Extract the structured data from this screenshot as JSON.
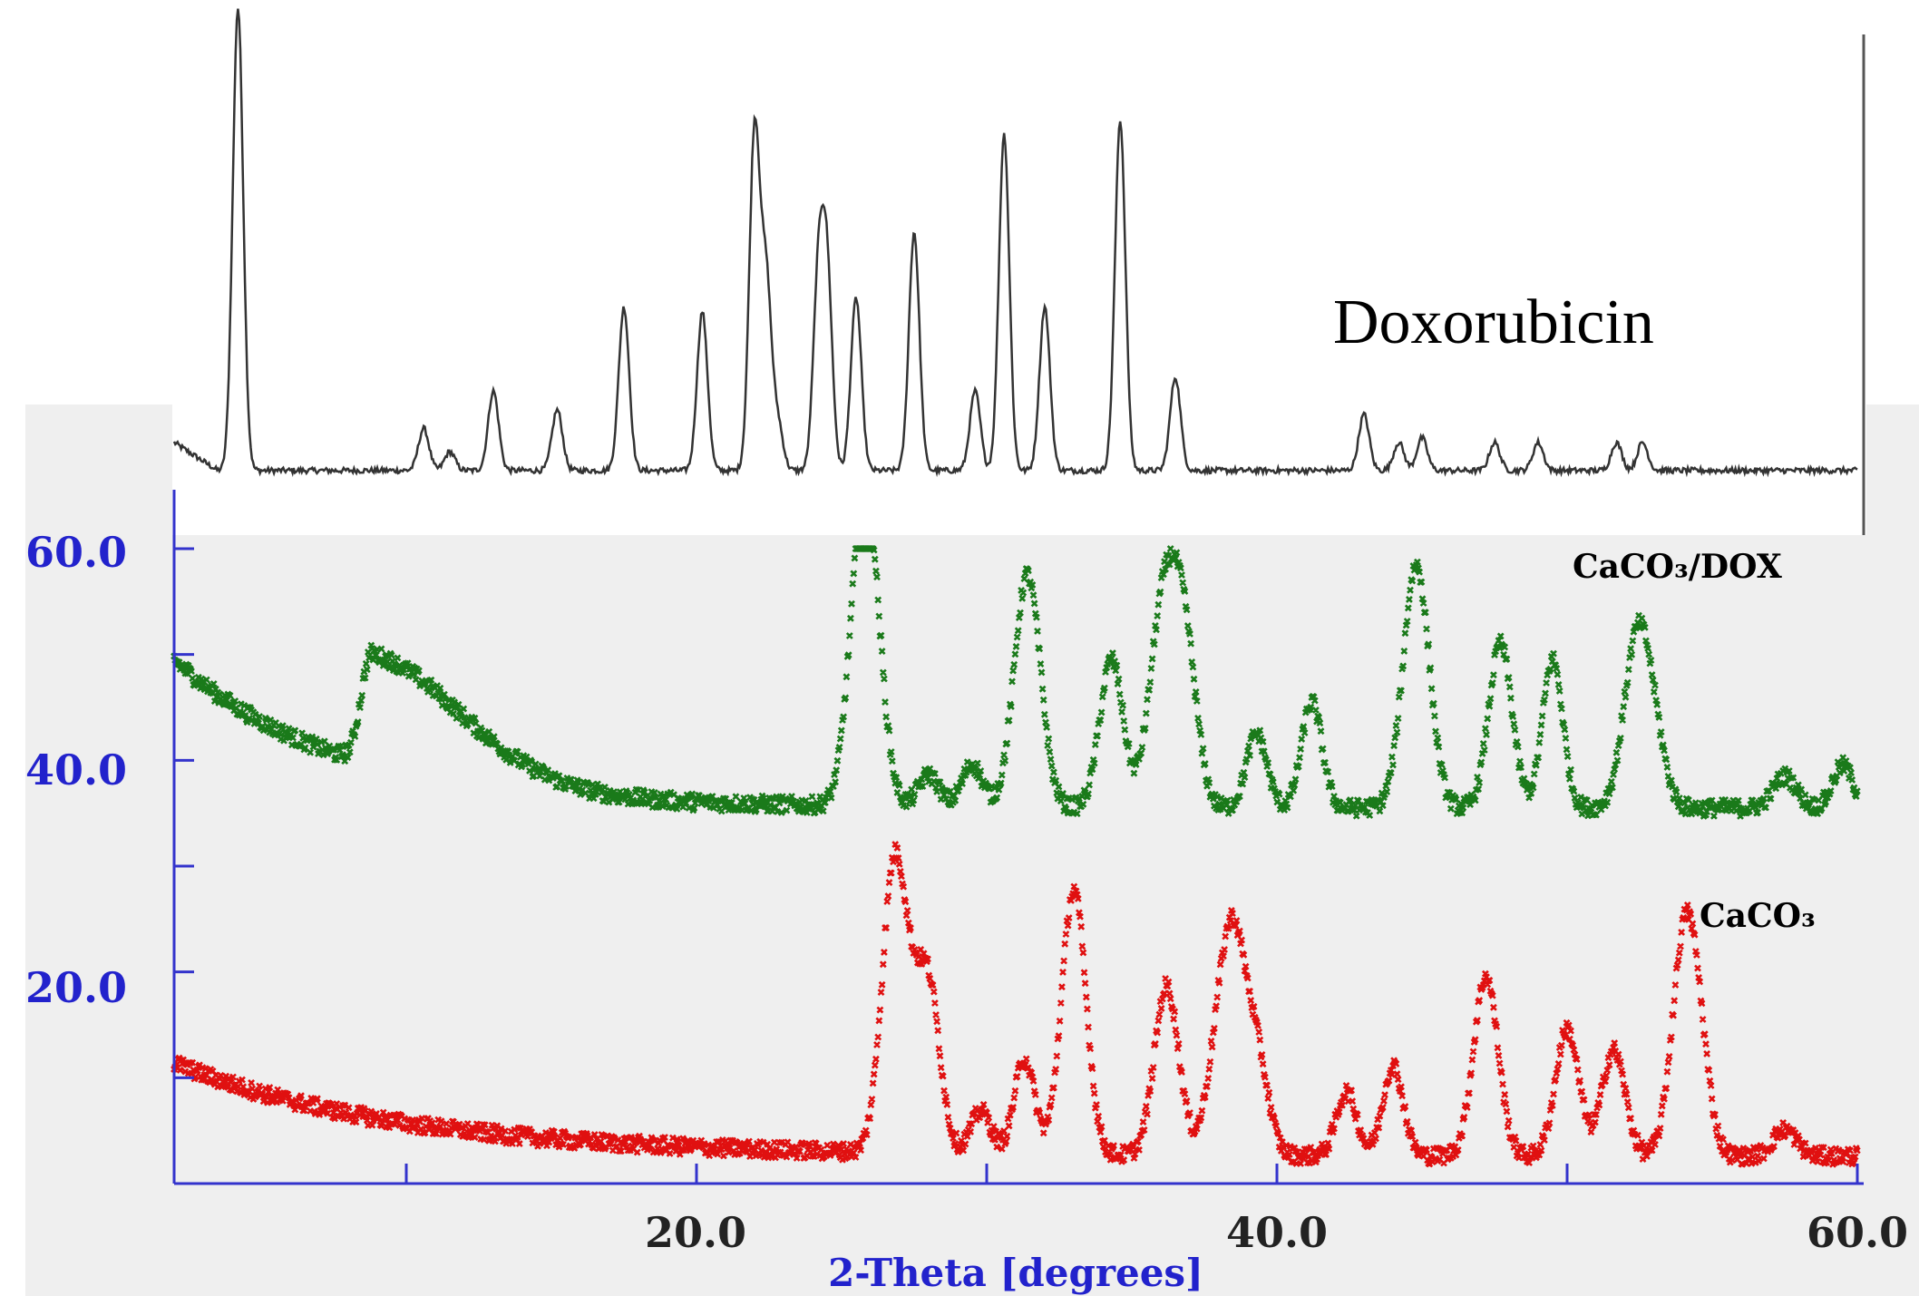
{
  "chart_data": {
    "type": "line",
    "xlabel": "2-Theta [degrees]",
    "x_ticks": [
      "20.0",
      "40.0",
      "60.0"
    ],
    "y_ticks": [
      "60.0",
      "40.0",
      "20.0"
    ],
    "xlim": [
      2,
      60
    ],
    "ylim": [
      0,
      60
    ],
    "grid": false,
    "inset": {
      "label": "Doxorubicin",
      "baseline": 0.08,
      "peaks": [
        {
          "x": 4.2,
          "h": 0.99
        },
        {
          "x": 10.6,
          "h": 0.09
        },
        {
          "x": 11.5,
          "h": 0.04
        },
        {
          "x": 13.0,
          "h": 0.17
        },
        {
          "x": 15.2,
          "h": 0.13
        },
        {
          "x": 17.5,
          "h": 0.35
        },
        {
          "x": 20.2,
          "h": 0.34
        },
        {
          "x": 22.0,
          "h": 0.72
        },
        {
          "x": 22.4,
          "h": 0.4
        },
        {
          "x": 22.8,
          "h": 0.1
        },
        {
          "x": 24.2,
          "h": 0.4
        },
        {
          "x": 24.5,
          "h": 0.41
        },
        {
          "x": 25.5,
          "h": 0.37
        },
        {
          "x": 27.5,
          "h": 0.51
        },
        {
          "x": 29.6,
          "h": 0.17
        },
        {
          "x": 30.6,
          "h": 0.72
        },
        {
          "x": 32.0,
          "h": 0.35
        },
        {
          "x": 34.6,
          "h": 0.75
        },
        {
          "x": 36.5,
          "h": 0.2
        },
        {
          "x": 43.0,
          "h": 0.12
        },
        {
          "x": 44.2,
          "h": 0.06
        },
        {
          "x": 45.0,
          "h": 0.07
        },
        {
          "x": 47.5,
          "h": 0.06
        },
        {
          "x": 49.0,
          "h": 0.06
        },
        {
          "x": 51.7,
          "h": 0.06
        },
        {
          "x": 52.6,
          "h": 0.06
        }
      ]
    },
    "series": [
      {
        "name": "CaCO₃/DOX",
        "color": "#1a7a1a",
        "background": 35.5,
        "decay": {
          "a": 14.0,
          "k": 0.18
        },
        "peaks": [
          {
            "x": 8.8,
            "h": 10.5,
            "w": 0.9
          },
          {
            "x": 25.7,
            "h": 18.0,
            "w": 0.45
          },
          {
            "x": 25.95,
            "h": 14.0,
            "w": 0.45
          },
          {
            "x": 28.0,
            "h": 3.0,
            "w": 0.35
          },
          {
            "x": 29.5,
            "h": 4.0,
            "w": 0.35
          },
          {
            "x": 31.4,
            "h": 22.0,
            "w": 0.45
          },
          {
            "x": 34.3,
            "h": 14.0,
            "w": 0.4
          },
          {
            "x": 35.8,
            "h": 7.0,
            "w": 0.4
          },
          {
            "x": 36.3,
            "h": 17.0,
            "w": 0.45
          },
          {
            "x": 36.9,
            "h": 11.0,
            "w": 0.4
          },
          {
            "x": 39.3,
            "h": 7.0,
            "w": 0.35
          },
          {
            "x": 41.2,
            "h": 10.0,
            "w": 0.35
          },
          {
            "x": 44.8,
            "h": 23.0,
            "w": 0.45
          },
          {
            "x": 47.7,
            "h": 15.5,
            "w": 0.4
          },
          {
            "x": 49.5,
            "h": 14.0,
            "w": 0.35
          },
          {
            "x": 52.4,
            "h": 15.5,
            "w": 0.45
          },
          {
            "x": 53.0,
            "h": 5.0,
            "w": 0.4
          },
          {
            "x": 57.5,
            "h": 3.0,
            "w": 0.4
          },
          {
            "x": 59.5,
            "h": 4.0,
            "w": 0.35
          }
        ]
      },
      {
        "name": "CaCO₃",
        "color": "#e01010",
        "background": 2.6,
        "decay": {
          "a": 8.8,
          "k": 0.13
        },
        "peaks": [
          {
            "x": 26.8,
            "h": 26.0,
            "w": 0.42
          },
          {
            "x": 27.4,
            "h": 6.0,
            "w": 0.4
          },
          {
            "x": 28.0,
            "h": 15.0,
            "w": 0.4
          },
          {
            "x": 29.8,
            "h": 4.0,
            "w": 0.35
          },
          {
            "x": 31.3,
            "h": 9.0,
            "w": 0.35
          },
          {
            "x": 33.0,
            "h": 25.0,
            "w": 0.42
          },
          {
            "x": 36.2,
            "h": 16.0,
            "w": 0.42
          },
          {
            "x": 37.9,
            "h": 7.0,
            "w": 0.4
          },
          {
            "x": 38.5,
            "h": 19.0,
            "w": 0.42
          },
          {
            "x": 39.3,
            "h": 9.0,
            "w": 0.4
          },
          {
            "x": 42.4,
            "h": 6.0,
            "w": 0.35
          },
          {
            "x": 44.0,
            "h": 8.5,
            "w": 0.35
          },
          {
            "x": 47.2,
            "h": 17.0,
            "w": 0.42
          },
          {
            "x": 50.0,
            "h": 12.0,
            "w": 0.4
          },
          {
            "x": 51.6,
            "h": 10.0,
            "w": 0.4
          },
          {
            "x": 54.0,
            "h": 18.0,
            "w": 0.42
          },
          {
            "x": 54.5,
            "h": 9.0,
            "w": 0.4
          },
          {
            "x": 57.5,
            "h": 2.5,
            "w": 0.4
          }
        ]
      }
    ]
  }
}
